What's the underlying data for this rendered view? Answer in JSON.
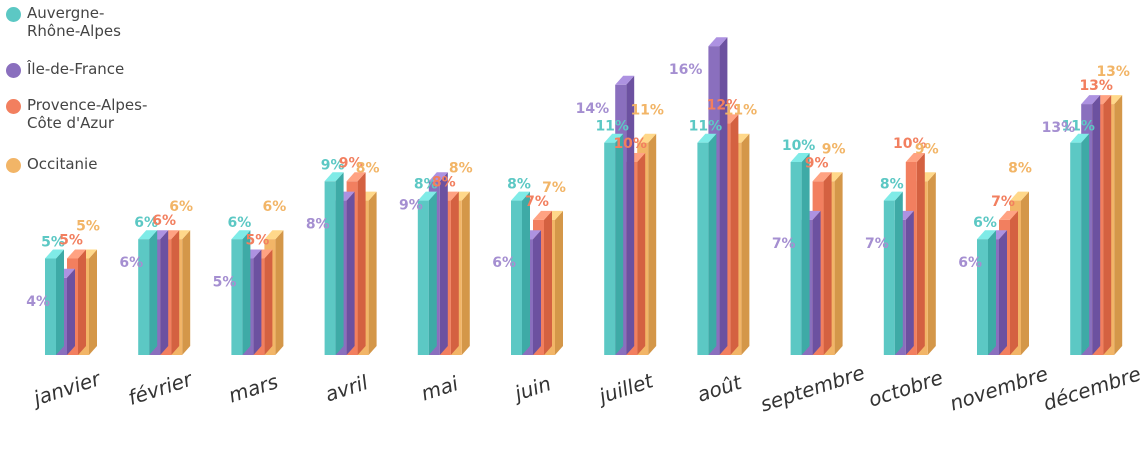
{
  "chart_data": {
    "type": "bar",
    "categories": [
      "janvier",
      "février",
      "mars",
      "avril",
      "mai",
      "juin",
      "juillet",
      "août",
      "septembre",
      "octobre",
      "novembre",
      "décembre"
    ],
    "series": [
      {
        "name": "Auvergne-Rhône-Alpes",
        "color": "#5cc8c4",
        "values": [
          5,
          6,
          6,
          9,
          8,
          8,
          11,
          11,
          10,
          8,
          6,
          11
        ],
        "labels": [
          "5%",
          "6%",
          "6%",
          "9%",
          "8%",
          "8%",
          "11%",
          "11%",
          "10%",
          "8%",
          "6%",
          "11%"
        ]
      },
      {
        "name": "Île-de-France",
        "color": "#8a6fbe",
        "values": [
          4,
          6,
          5,
          8,
          9,
          6,
          14,
          16,
          7,
          7,
          6,
          13
        ],
        "labels": [
          "4%",
          "6%",
          "5%",
          "8%",
          "9%",
          "6%",
          "14%",
          "16%",
          "7%",
          "7%",
          "6%",
          "13%"
        ]
      },
      {
        "name": "Provence-Alpes-Côte d'Azur",
        "color": "#f27f5f",
        "values": [
          5,
          6,
          5,
          9,
          8,
          7,
          10,
          12,
          9,
          10,
          7,
          13
        ],
        "labels": [
          "5%",
          "6%",
          "5%",
          "9%",
          "8%",
          "7%",
          "10%",
          "12%",
          "9%",
          "10%",
          "7%",
          "13%"
        ]
      },
      {
        "name": "Occitanie",
        "color": "#f2b567",
        "values": [
          5,
          6,
          6,
          8,
          8,
          7,
          11,
          11,
          9,
          9,
          8,
          13
        ],
        "labels": [
          "5%",
          "6%",
          "6%",
          "8%",
          "8%",
          "7%",
          "11%",
          "11%",
          "9%",
          "9%",
          "8%",
          "13%"
        ]
      }
    ],
    "ylim": [
      0,
      16
    ],
    "grid": false,
    "legend_position": "top-left"
  },
  "legend": {
    "items": [
      {
        "label": "Auvergne-Rhône-Alpes",
        "color": "#5cc8c4"
      },
      {
        "label": "Île-de-France",
        "color": "#8a6fbe"
      },
      {
        "label": "Provence-Alpes-Côte d'Azur",
        "color": "#f27f5f"
      },
      {
        "label": "Occitanie",
        "color": "#f2b567"
      }
    ]
  }
}
